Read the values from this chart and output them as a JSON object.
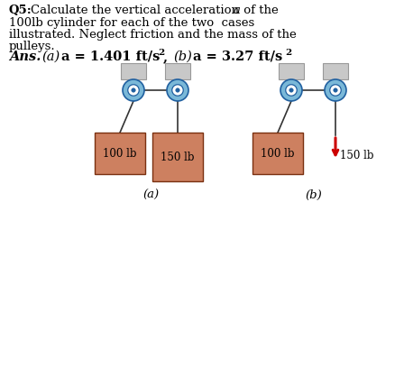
{
  "box_color": "#cd8060",
  "box_edge_color": "#7a3010",
  "pulley_color": "#7ab8d8",
  "pulley_mid_color": "#ffffff",
  "pulley_edge": "#2060a0",
  "support_color": "#c8c8c8",
  "support_edge": "#999999",
  "rope_color": "#333333",
  "arrow_color": "#cc0000",
  "bg_color": "#ffffff",
  "text_color": "#000000",
  "q_bold": "Q5:",
  "q_rest": " Calculate the vertical acceleration ",
  "q_italic_a": "a",
  "q_line2": "100lb cylinder for each of the two  cases",
  "q_line3": "illustrated. Neglect friction and the mass of the",
  "q_line4": "pulleys.",
  "ans_label": "Ans.",
  "ans_a_label": "(a)",
  "ans_a_val": "a = 1.401 ft/s",
  "ans_a_sup": "2",
  "ans_b_label": "(b)",
  "ans_b_val": "a = 3.27 ft/s",
  "ans_b_sup": "2",
  "diag_label_a": "(a)",
  "diag_label_b": "(b)",
  "box1_label": "100 lb",
  "box2a_label": "150 lb",
  "box2b_label": "150 lb"
}
